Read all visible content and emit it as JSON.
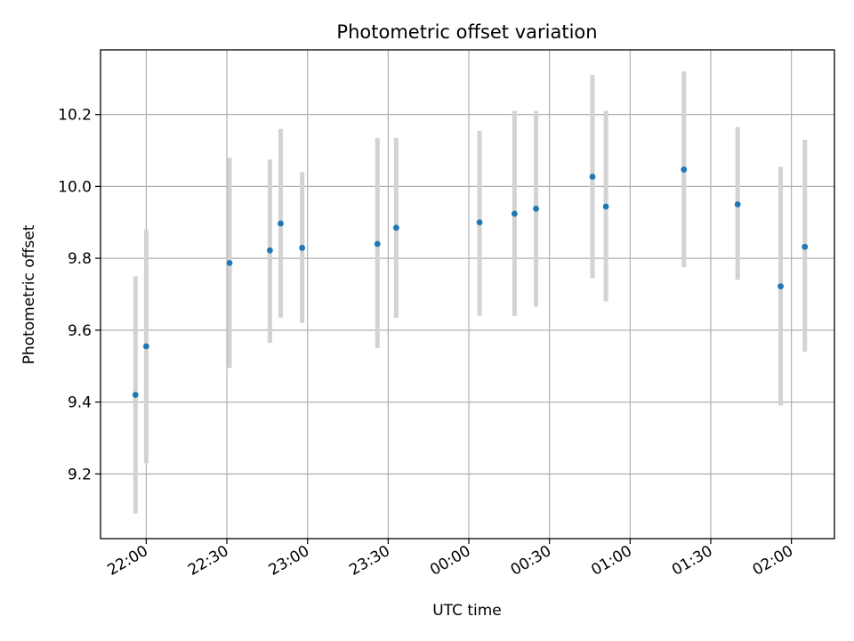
{
  "chart_data": {
    "type": "scatter",
    "title": "Photometric offset variation",
    "xlabel": "UTC time",
    "ylabel": "Photometric offset",
    "x_axis_type": "time",
    "xlim": [
      "21:43",
      "02:16"
    ],
    "ylim": [
      9.02,
      10.38
    ],
    "grid": true,
    "x_ticks": [
      "22:00",
      "22:30",
      "23:00",
      "23:30",
      "00:00",
      "00:30",
      "01:00",
      "01:30",
      "02:00"
    ],
    "y_ticks": [
      9.2,
      9.4,
      9.6,
      9.8,
      10.0,
      10.2
    ],
    "point_color": "#1f77b4",
    "errorbar_color": "#d3d3d3",
    "points": [
      {
        "x": "21:56",
        "y": 9.42,
        "yerr_low": 9.09,
        "yerr_high": 9.75
      },
      {
        "x": "22:00",
        "y": 9.555,
        "yerr_low": 9.23,
        "yerr_high": 9.88
      },
      {
        "x": "22:31",
        "y": 9.787,
        "yerr_low": 9.495,
        "yerr_high": 10.08
      },
      {
        "x": "22:46",
        "y": 9.822,
        "yerr_low": 9.565,
        "yerr_high": 10.075
      },
      {
        "x": "22:50",
        "y": 9.897,
        "yerr_low": 9.635,
        "yerr_high": 10.16
      },
      {
        "x": "22:58",
        "y": 9.829,
        "yerr_low": 9.62,
        "yerr_high": 10.04
      },
      {
        "x": "23:26",
        "y": 9.84,
        "yerr_low": 9.55,
        "yerr_high": 10.135
      },
      {
        "x": "23:33",
        "y": 9.885,
        "yerr_low": 9.635,
        "yerr_high": 10.135
      },
      {
        "x": "00:04",
        "y": 9.9,
        "yerr_low": 9.64,
        "yerr_high": 10.155
      },
      {
        "x": "00:17",
        "y": 9.924,
        "yerr_low": 9.64,
        "yerr_high": 10.21
      },
      {
        "x": "00:25",
        "y": 9.938,
        "yerr_low": 9.665,
        "yerr_high": 10.21
      },
      {
        "x": "00:46",
        "y": 10.027,
        "yerr_low": 9.745,
        "yerr_high": 10.31
      },
      {
        "x": "00:51",
        "y": 9.944,
        "yerr_low": 9.68,
        "yerr_high": 10.21
      },
      {
        "x": "01:20",
        "y": 10.047,
        "yerr_low": 9.775,
        "yerr_high": 10.32
      },
      {
        "x": "01:40",
        "y": 9.95,
        "yerr_low": 9.74,
        "yerr_high": 10.165
      },
      {
        "x": "01:56",
        "y": 9.722,
        "yerr_low": 9.39,
        "yerr_high": 10.055
      },
      {
        "x": "02:05",
        "y": 9.832,
        "yerr_low": 9.54,
        "yerr_high": 10.13
      }
    ]
  }
}
